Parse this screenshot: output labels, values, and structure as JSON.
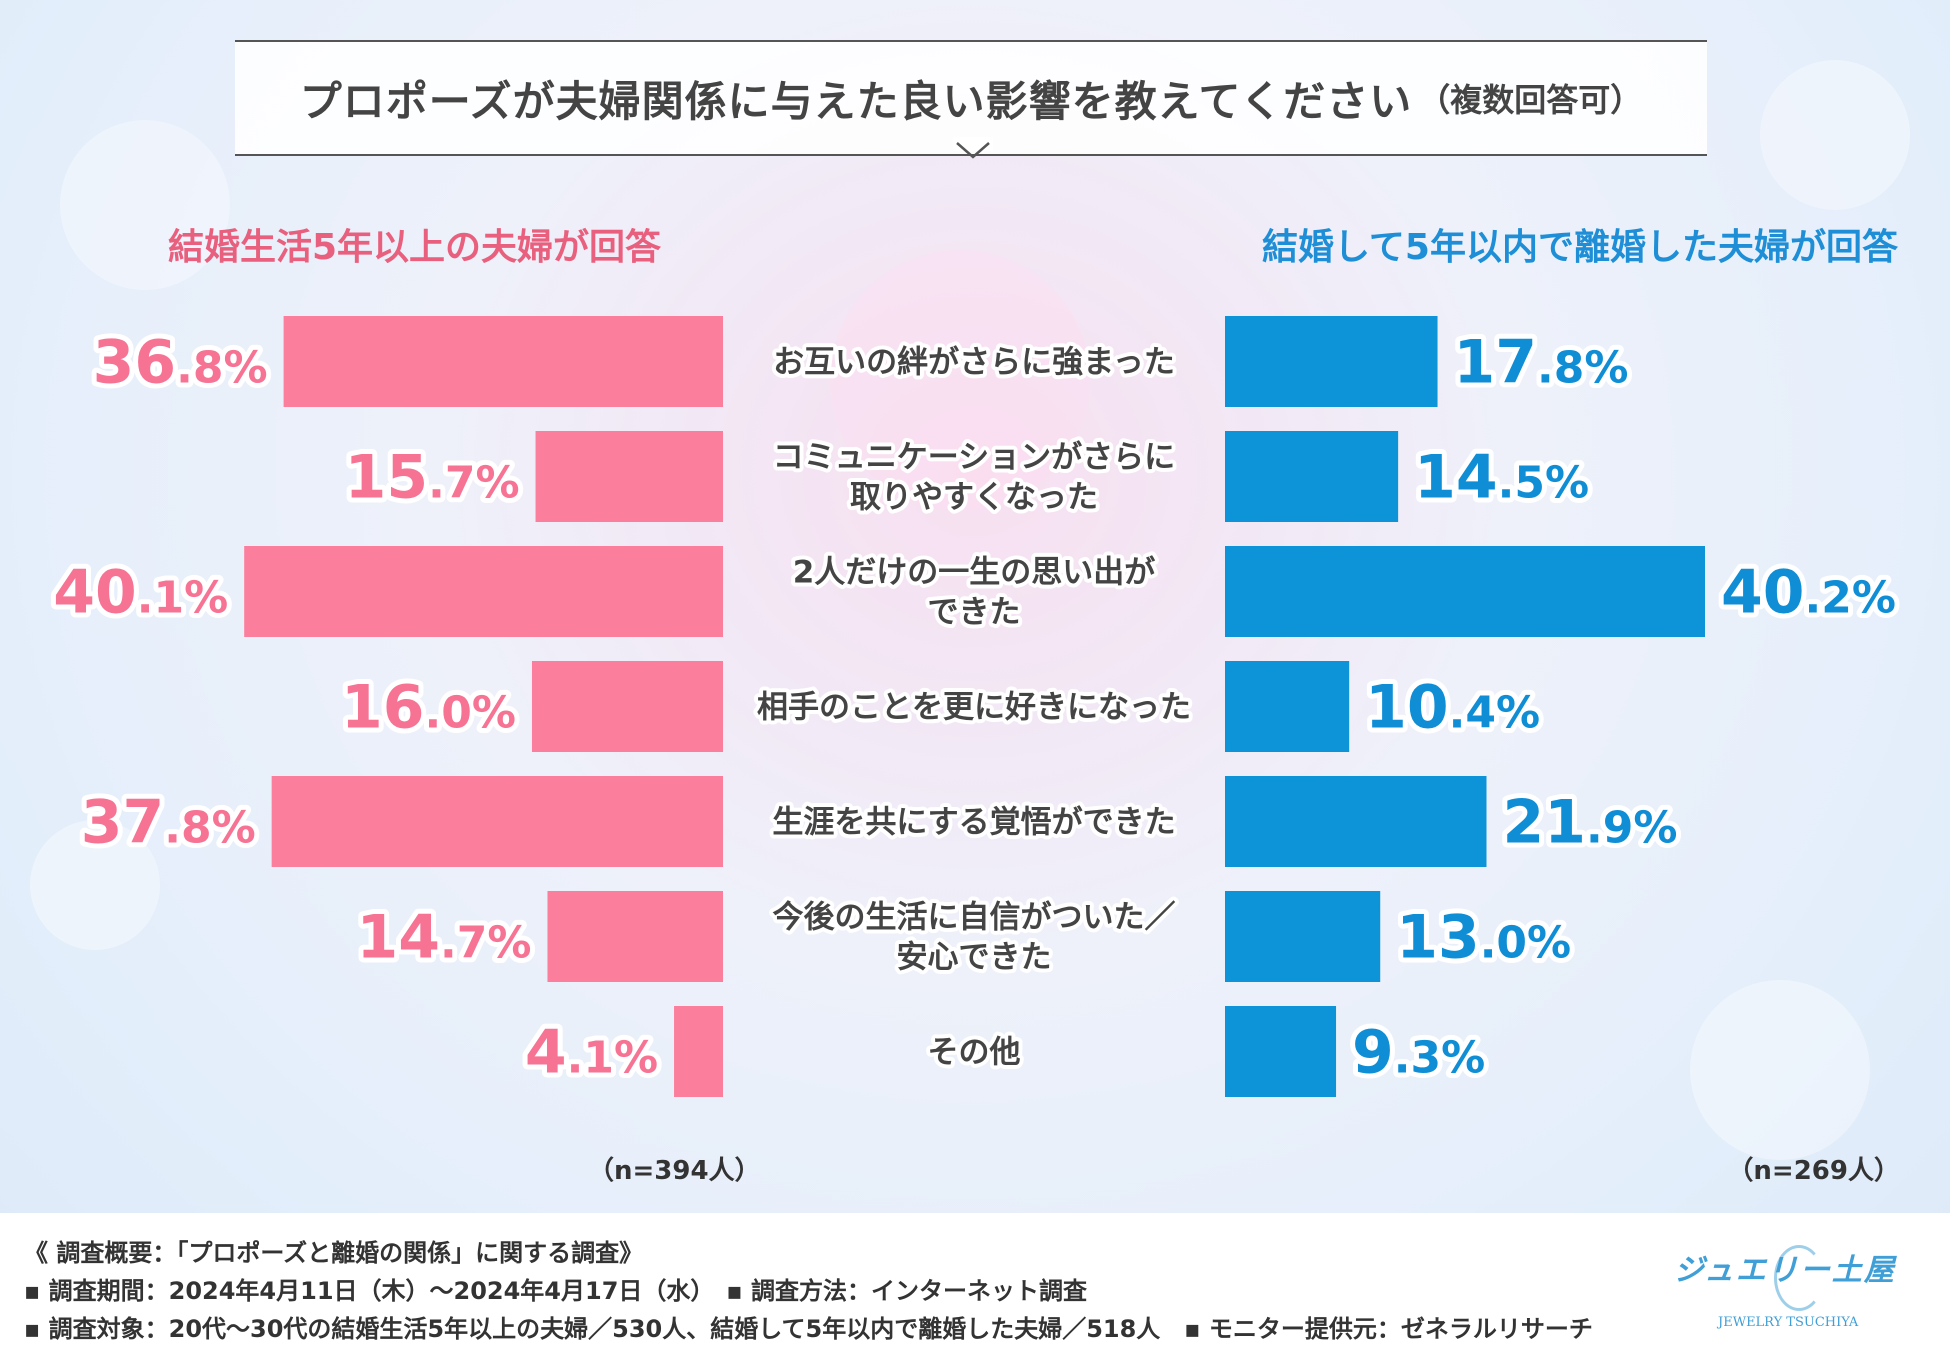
{
  "title": "プロポーズが夫婦関係に与えた良い影響を教えてください",
  "title_note": "（複数回答可）",
  "groups": {
    "left_label": "結婚生活5年以上の夫婦が回答",
    "right_label": "結婚して5年以内で離婚した夫婦が回答",
    "left_n": "（n=394人）",
    "right_n": "（n=269人）"
  },
  "colors": {
    "left": "#fb7e9c",
    "right": "#0d93d7",
    "left_text": "#f67394",
    "right_text": "#0f8ed6"
  },
  "chart_data": {
    "type": "bar",
    "orientation": "horizontal-butterfly",
    "title": "プロポーズが夫婦関係に与えた良い影響を教えてください（複数回答可）",
    "categories": [
      [
        "お互いの絆がさらに強まった"
      ],
      [
        "コミュニケーションがさらに",
        "取りやすくなった"
      ],
      [
        "2人だけの一生の思い出が",
        "できた"
      ],
      [
        "相手のことを更に好きになった"
      ],
      [
        "生涯を共にする覚悟ができた"
      ],
      [
        "今後の生活に自信がついた／",
        "安心できた"
      ],
      [
        "その他"
      ]
    ],
    "unit": "%",
    "xlim": [
      0,
      40.2
    ],
    "series": [
      {
        "name": "結婚生活5年以上の夫婦が回答",
        "side": "left",
        "values": [
          36.8,
          15.7,
          40.1,
          16.0,
          37.8,
          14.7,
          4.1
        ]
      },
      {
        "name": "結婚して5年以内で離婚した夫婦が回答",
        "side": "right",
        "values": [
          17.8,
          14.5,
          40.2,
          10.4,
          21.9,
          13.0,
          9.3
        ]
      }
    ]
  },
  "footer": {
    "line1": "《 調査概要：「プロポーズと離婚の関係」に関する調査》",
    "line2": "▪ 調査期間：2024年4月11日（木）〜2024年4月17日（水）　▪ 調査方法：インターネット調査",
    "line3": "▪ 調査対象：20代〜30代の結婚生活5年以上の夫婦／530人、結婚して5年以内で離婚した夫婦／518人　▪ モニター提供元：ゼネラルリサーチ"
  },
  "logo": {
    "name": "ジュエリー土屋",
    "sub": "JEWELRY TSUCHIYA"
  }
}
